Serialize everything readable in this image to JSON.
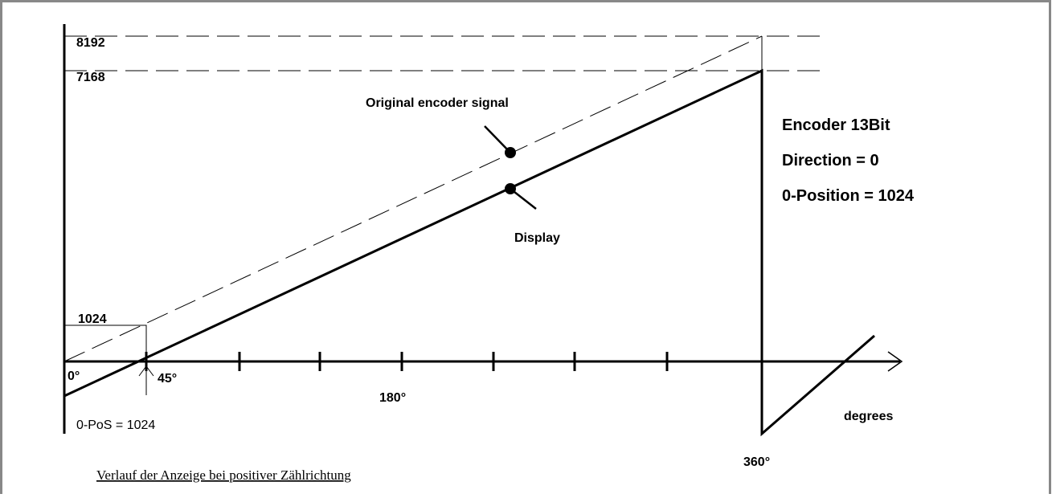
{
  "axis_labels": {
    "y_top": "8192",
    "y_second": "7168",
    "y_offset": "1024",
    "x_start": "0°",
    "x_offset": "45°",
    "x_mid": "180°",
    "x_end": "360°",
    "x_unit": "degrees"
  },
  "signals": {
    "original": "Original encoder signal",
    "display": "Display"
  },
  "settings": [
    "Encoder 13Bit",
    "Direction = 0",
    "0-Position = 1024"
  ],
  "zero_pos_note": "0-PoS = 1024",
  "caption": "Verlauf der Anzeige bei positiver Zählrichtung"
}
